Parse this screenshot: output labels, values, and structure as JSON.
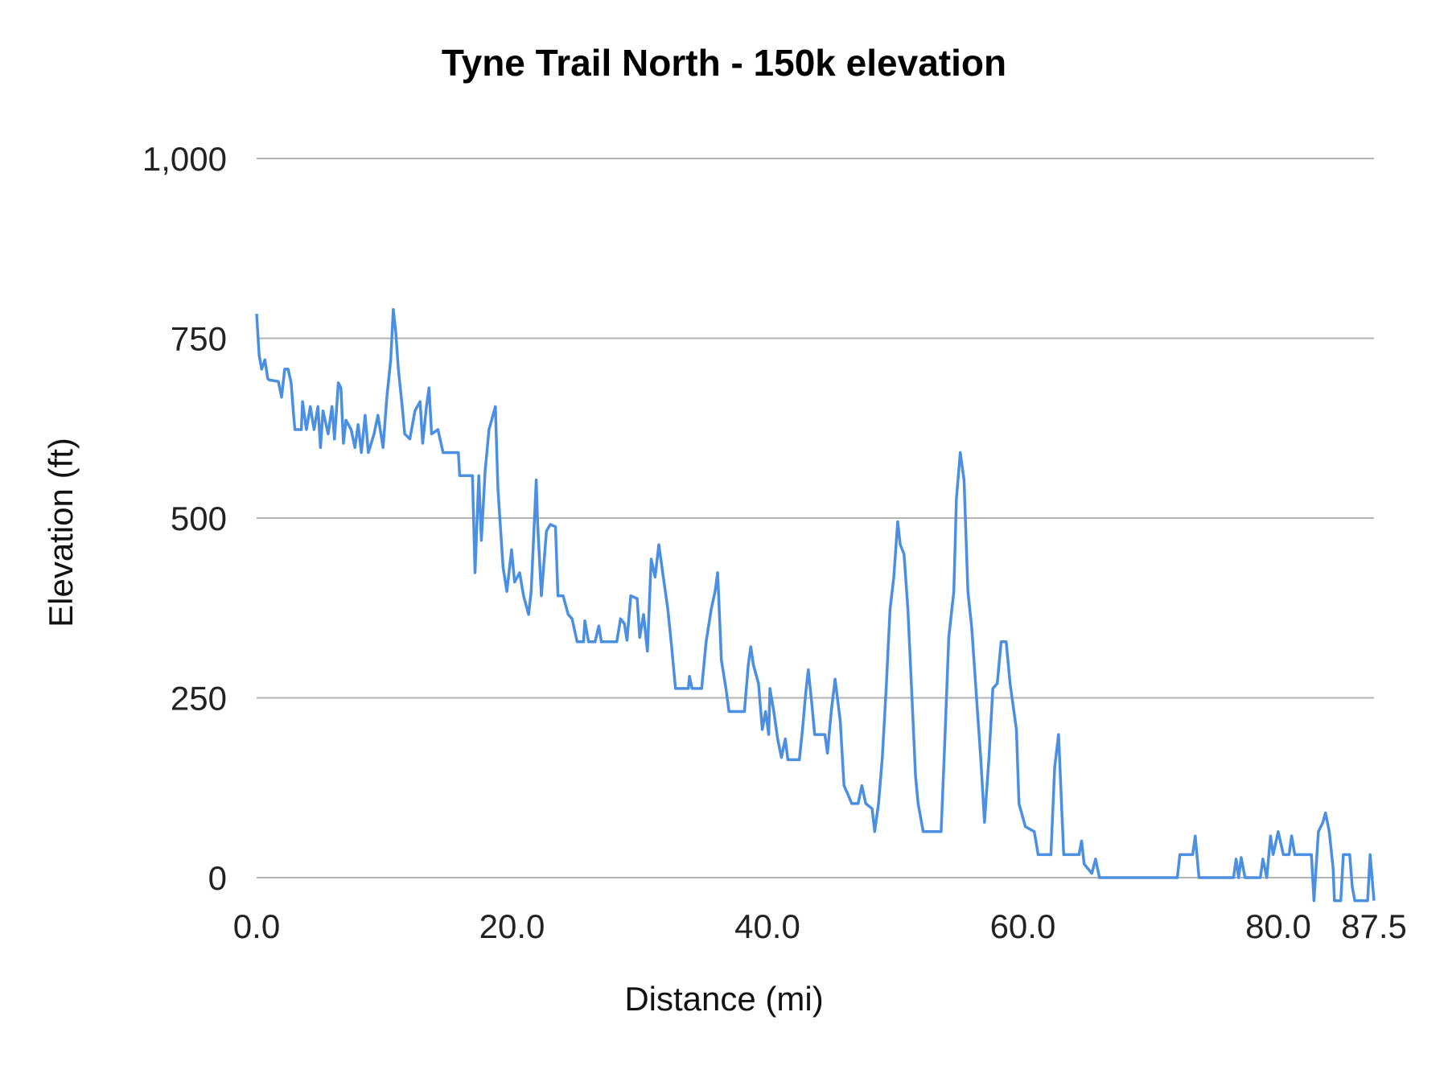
{
  "chart_data": {
    "type": "line",
    "title": "Tyne Trail North - 150k elevation",
    "xlabel": "Distance (mi)",
    "ylabel": "Elevation (ft)",
    "xlim": [
      0,
      87.5
    ],
    "ylim": [
      0,
      1000
    ],
    "x_ticks": [
      "0.0",
      "20.0",
      "40.0",
      "60.0",
      "80.0",
      "87.5"
    ],
    "x_tick_values": [
      0,
      20,
      40,
      60,
      80,
      87.5
    ],
    "y_ticks": [
      "0",
      "250",
      "500",
      "750",
      "1,000"
    ],
    "y_tick_values": [
      0,
      250,
      500,
      750,
      1000
    ],
    "grid": "horizontal",
    "legend": "none",
    "line_color": "#4a8fe2",
    "grid_color": "#b3b3b3",
    "series": [
      {
        "x": [
          0,
          0.2,
          0.4,
          0.65,
          0.87,
          1.0,
          1.7,
          1.95,
          2.2,
          2.46,
          2.7,
          2.9,
          3.0,
          3.5,
          3.6,
          3.9,
          4.2,
          4.5,
          4.8,
          5.0,
          5.2,
          5.6,
          5.9,
          6.1,
          6.4,
          6.6,
          6.8,
          7.0,
          7.4,
          7.7,
          7.95,
          8.2,
          8.5,
          8.75,
          9.2,
          9.5,
          9.9,
          10.2,
          10.5,
          10.7,
          10.9,
          11.1,
          11.4,
          11.6,
          12.0,
          12.4,
          12.8,
          13.0,
          13.3,
          13.5,
          13.7,
          14.2,
          14.6,
          15.8,
          15.9,
          16.9,
          17.1,
          17.4,
          17.6,
          17.9,
          18.2,
          18.7,
          18.9,
          19.3,
          19.6,
          19.96,
          20.2,
          20.6,
          20.9,
          21.3,
          21.5,
          21.9,
          22.0,
          22.3,
          22.7,
          23.0,
          23.4,
          23.6,
          24.0,
          24.4,
          24.7,
          25.1,
          25.6,
          25.7,
          26.0,
          26.5,
          26.8,
          27.0,
          28.2,
          28.5,
          28.8,
          29.0,
          29.3,
          29.8,
          30.0,
          30.3,
          30.6,
          30.9,
          31.2,
          31.5,
          31.8,
          32.2,
          32.5,
          32.8,
          33.8,
          33.9,
          34.1,
          34.85,
          35.2,
          35.6,
          35.9,
          36.1,
          36.4,
          36.75,
          37.0,
          38.2,
          38.5,
          38.7,
          38.9,
          39.3,
          39.6,
          39.85,
          40.1,
          40.2,
          40.5,
          40.8,
          41.1,
          41.4,
          41.6,
          42.5,
          42.75,
          43.0,
          43.2,
          43.5,
          43.7,
          44.5,
          44.7,
          45.0,
          45.3,
          45.7,
          46.0,
          46.3,
          46.6,
          47.1,
          47.4,
          47.7,
          48.2,
          48.4,
          48.7,
          49.0,
          49.3,
          49.6,
          49.9,
          50.2,
          50.4,
          50.7,
          51.0,
          51.3,
          51.6,
          51.8,
          52.2,
          53.6,
          53.9,
          54.2,
          54.6,
          54.8,
          55.1,
          55.4,
          55.7,
          56.0,
          56.4,
          56.7,
          57.0,
          57.35,
          57.65,
          58.0,
          58.3,
          58.7,
          59.0,
          59.5,
          59.7,
          60.2,
          60.9,
          61.2,
          62.2,
          62.5,
          62.8,
          63.2,
          64.4,
          64.6,
          64.8,
          65.4,
          65.7,
          66.0,
          72.1,
          72.3,
          73.3,
          73.5,
          73.8,
          76.5,
          76.7,
          76.9,
          77.1,
          77.4,
          78.6,
          78.8,
          79.1,
          79.4,
          79.6,
          80.0,
          80.4,
          80.85,
          81.05,
          81.3,
          82.6,
          82.8,
          83.15,
          83.5,
          83.7,
          84.0,
          84.3,
          84.4,
          84.9,
          85.1,
          85.6,
          85.8,
          86.0,
          87.0,
          87.2,
          87.5
        ],
        "y": [
          784,
          726,
          707,
          720,
          694,
          692,
          690,
          668,
          707,
          707,
          688,
          643,
          623,
          623,
          662,
          623,
          655,
          623,
          655,
          598,
          649,
          617,
          655,
          610,
          688,
          681,
          604,
          636,
          623,
          598,
          630,
          591,
          643,
          591,
          617,
          643,
          598,
          668,
          720,
          790,
          758,
          707,
          655,
          617,
          610,
          649,
          662,
          604,
          655,
          681,
          617,
          623,
          591,
          591,
          559,
          559,
          424,
          559,
          469,
          566,
          623,
          655,
          540,
          431,
          398,
          456,
          411,
          424,
          392,
          366,
          398,
          553,
          495,
          392,
          482,
          491,
          488,
          392,
          392,
          366,
          360,
          328,
          328,
          357,
          328,
          328,
          350,
          328,
          328,
          360,
          353,
          330,
          392,
          388,
          334,
          366,
          315,
          443,
          418,
          463,
          424,
          373,
          321,
          263,
          263,
          280,
          263,
          263,
          328,
          373,
          398,
          424,
          302,
          263,
          231,
          231,
          296,
          321,
          296,
          270,
          206,
          231,
          199,
          263,
          231,
          193,
          167,
          193,
          164,
          164,
          206,
          257,
          289,
          238,
          199,
          199,
          173,
          231,
          276,
          218,
          128,
          116,
          103,
          103,
          128,
          103,
          96,
          64,
          103,
          167,
          263,
          373,
          418,
          495,
          463,
          450,
          373,
          257,
          141,
          103,
          64,
          64,
          193,
          334,
          398,
          527,
          591,
          553,
          398,
          347,
          244,
          167,
          77,
          167,
          263,
          270,
          328,
          328,
          270,
          206,
          103,
          71,
          64,
          32,
          32,
          154,
          199,
          32,
          32,
          51,
          19,
          6,
          26,
          0,
          0,
          32,
          32,
          58,
          0,
          0,
          26,
          0,
          28,
          0,
          0,
          26,
          0,
          58,
          32,
          64,
          32,
          32,
          58,
          32,
          32,
          -32,
          64,
          77,
          90,
          64,
          13,
          -32,
          -32,
          32,
          32,
          -13,
          -32,
          -32,
          32,
          -32
        ]
      }
    ]
  }
}
